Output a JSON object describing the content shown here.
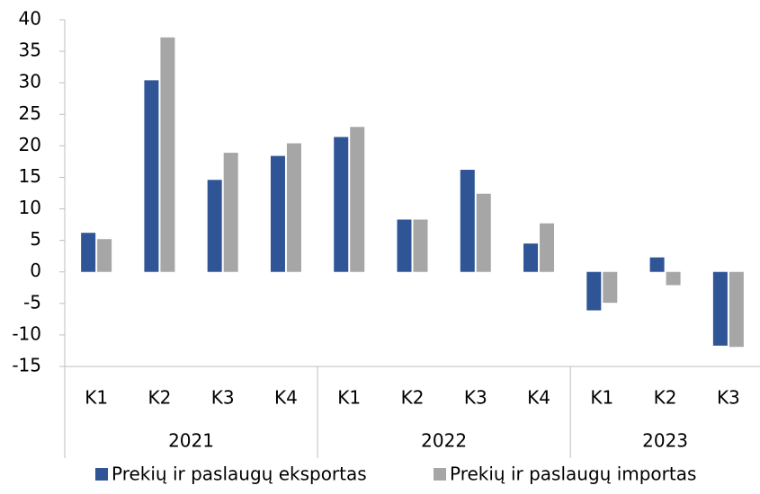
{
  "chart_data": {
    "type": "bar",
    "category_groups": [
      {
        "label": "2021",
        "categories": [
          "K1",
          "K2",
          "K3",
          "K4"
        ]
      },
      {
        "label": "2022",
        "categories": [
          "K1",
          "K2",
          "K3",
          "K4"
        ]
      },
      {
        "label": "2023",
        "categories": [
          "K1",
          "K2",
          "K3"
        ]
      }
    ],
    "series": [
      {
        "name": "Prekių ir paslaugų eksportas",
        "color": "#2f5597",
        "values": [
          6.2,
          30.4,
          14.6,
          18.4,
          21.4,
          8.3,
          16.2,
          4.5,
          -6.1,
          2.3,
          -11.7
        ]
      },
      {
        "name": "Prekių ir paslaugų importas",
        "color": "#a6a6a6",
        "values": [
          5.2,
          37.2,
          18.9,
          20.4,
          23.0,
          8.3,
          12.4,
          7.7,
          -4.9,
          -2.1,
          -11.9
        ]
      }
    ],
    "ylim": [
      -15,
      40
    ],
    "yticks": [
      -15,
      -10,
      -5,
      0,
      5,
      10,
      15,
      20,
      25,
      30,
      35,
      40
    ],
    "grid": false,
    "legend": "bottom"
  }
}
